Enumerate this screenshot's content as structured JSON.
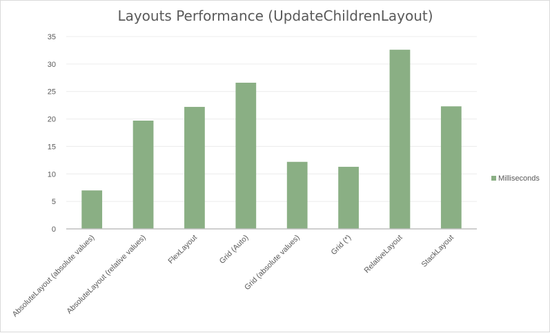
{
  "chart_data": {
    "type": "bar",
    "title": "Layouts Performance (UpdateChildrenLayout)",
    "xlabel": "",
    "ylabel": "",
    "categories": [
      "AbsoluteLayout  (absolute  values)",
      "AbsoluteLayout  (relative values)",
      "FlexLayout",
      "Grid (Auto)",
      "Grid (absolute values)",
      "Grid (*)",
      "RelativeLayout",
      "StackLayout"
    ],
    "series": [
      {
        "name": "Milliseconds",
        "color": "#8aaf84",
        "values": [
          7.0,
          19.7,
          22.2,
          26.6,
          12.2,
          11.3,
          32.6,
          22.3
        ]
      }
    ],
    "ylim": [
      0,
      35
    ],
    "yticks": [
      "0",
      "5",
      "10",
      "15",
      "20",
      "25",
      "30",
      "35"
    ],
    "grid": true,
    "legend_position": "right"
  }
}
